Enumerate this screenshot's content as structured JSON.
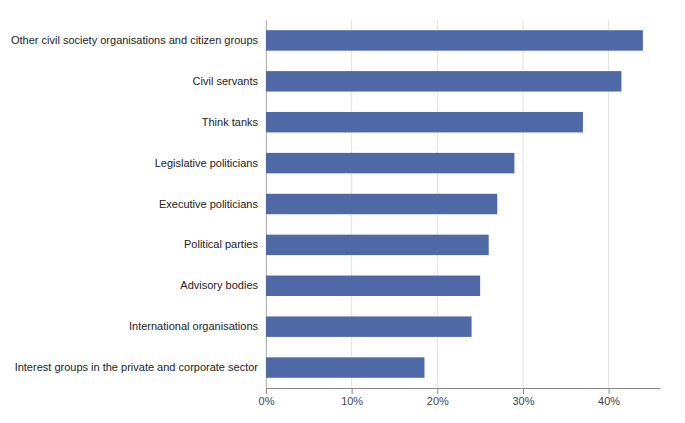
{
  "chart_data": {
    "type": "bar",
    "orientation": "horizontal",
    "categories": [
      "Interest groups in the private and corporate sector",
      "International organisations",
      "Advisory bodies",
      "Political parties",
      "Executive politicians",
      "Legislative politicians",
      "Think tanks",
      "Civil servants",
      "Other civil society organisations and citizen groups"
    ],
    "values": [
      18.5,
      24.0,
      25.0,
      26.0,
      27.0,
      29.0,
      37.0,
      41.5,
      44.0
    ],
    "color": "#4f68a6",
    "xlim": [
      0,
      46
    ],
    "xticks": [
      {
        "value": 0,
        "label": "0%"
      },
      {
        "value": 10,
        "label": "10%"
      },
      {
        "value": 20,
        "label": "20%"
      },
      {
        "value": 30,
        "label": "30%"
      },
      {
        "value": 40,
        "label": "40%"
      }
    ],
    "grid": true
  }
}
